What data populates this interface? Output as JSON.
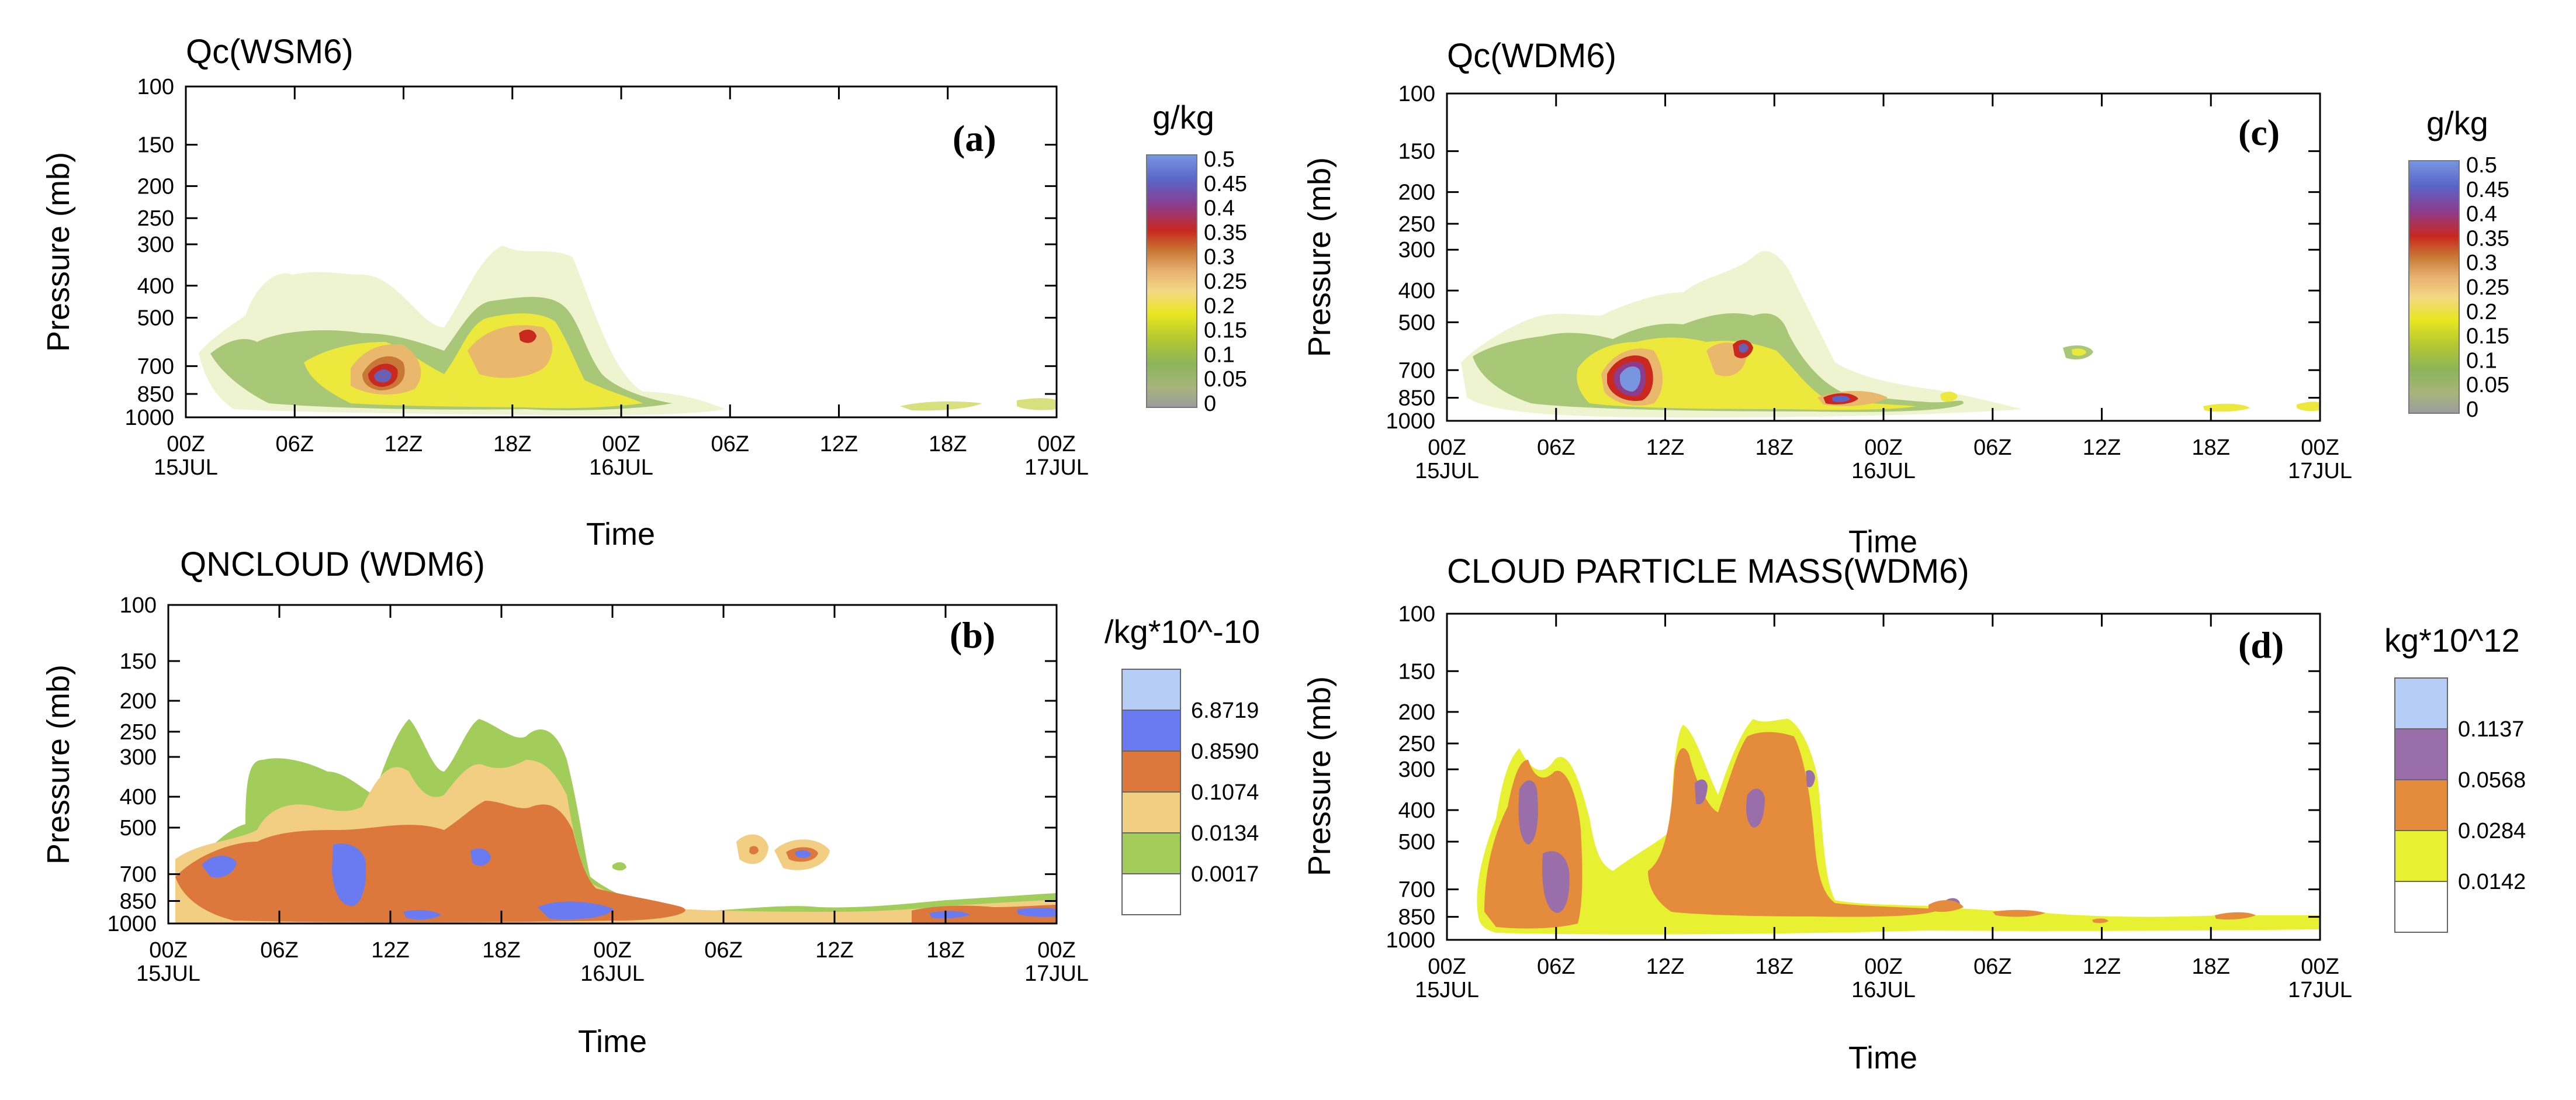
{
  "figure": {
    "description_panels": "Four time-pressure cross sections of cloud microphysics fields",
    "panels": [
      "a",
      "b",
      "c",
      "d"
    ]
  },
  "chart_data": [
    {
      "id": "a",
      "type": "heatmap",
      "title": "Qc(WSM6)",
      "panel_label": "(a)",
      "xlabel": "Time",
      "ylabel": "Pressure (mb)",
      "x_ticks": [
        "00Z",
        "06Z",
        "12Z",
        "18Z",
        "00Z",
        "06Z",
        "12Z",
        "18Z",
        "00Z"
      ],
      "x_dates": [
        "15JUL",
        "16JUL",
        "17JUL"
      ],
      "x_hours_range": [
        0,
        48
      ],
      "y_ticks": [
        100,
        150,
        200,
        250,
        300,
        400,
        500,
        700,
        850,
        1000
      ],
      "y_range": [
        1000,
        100
      ],
      "y_scale": "log",
      "colorbar": {
        "unit": "g/kg",
        "type": "continuous",
        "labels": [
          "0.5",
          "0.45",
          "0.4",
          "0.35",
          "0.3",
          "0.25",
          "0.2",
          "0.15",
          "0.1",
          "0.05",
          "0"
        ],
        "levels": [
          0,
          0.05,
          0.1,
          0.15,
          0.2,
          0.25,
          0.3,
          0.35,
          0.4,
          0.45,
          0.5
        ],
        "colors": [
          "#9c9c9c",
          "#a8b47a",
          "#8cb45a",
          "#b4c830",
          "#e8e620",
          "#f4d884",
          "#e8b070",
          "#c87834",
          "#c8281e",
          "#8c3c8c",
          "#5a64c8",
          "#7896e0"
        ]
      },
      "features": [
        {
          "t": 2,
          "p": 680,
          "v": 0.06
        },
        {
          "t": 4,
          "p": 620,
          "v": 0.08
        },
        {
          "t": 8,
          "p": 640,
          "v": 0.15
        },
        {
          "t": 10.5,
          "p": 760,
          "v": 0.45
        },
        {
          "t": 12,
          "p": 820,
          "v": 0.25
        },
        {
          "t": 15.5,
          "p": 620,
          "v": 0.3
        },
        {
          "t": 18.5,
          "p": 560,
          "v": 0.3
        },
        {
          "t": 21,
          "p": 800,
          "v": 0.1
        },
        {
          "t": 42,
          "p": 900,
          "v": 0.1
        },
        {
          "t": 47.5,
          "p": 880,
          "v": 0.1
        }
      ]
    },
    {
      "id": "b",
      "type": "heatmap",
      "title": "QNCLOUD (WDM6)",
      "panel_label": "(b)",
      "xlabel": "Time",
      "ylabel": "Pressure (mb)",
      "x_ticks": [
        "00Z",
        "06Z",
        "12Z",
        "18Z",
        "00Z",
        "06Z",
        "12Z",
        "18Z",
        "00Z"
      ],
      "x_dates": [
        "15JUL",
        "16JUL",
        "17JUL"
      ],
      "x_hours_range": [
        0,
        48
      ],
      "y_ticks": [
        100,
        150,
        200,
        250,
        300,
        400,
        500,
        700,
        850,
        1000
      ],
      "y_range": [
        1000,
        100
      ],
      "y_scale": "log",
      "colorbar": {
        "unit": "/kg*10^-10",
        "type": "discrete",
        "labels": [
          "6.8719",
          "0.8590",
          "0.1074",
          "0.0134",
          "0.0017"
        ],
        "colors": [
          "#ffffff",
          "#a2cd5a",
          "#f2ce82",
          "#dd783c",
          "#6a7af0",
          "#b6cef6"
        ]
      },
      "features": [
        {
          "t": 3,
          "p": 650,
          "v": 6.87
        },
        {
          "t": 10,
          "p": 700,
          "v": 6.87
        },
        {
          "t": 17,
          "p": 650,
          "v": 6.87
        },
        {
          "t": 21,
          "p": 850,
          "v": 6.87
        },
        {
          "t": 32,
          "p": 560,
          "v": 0.11
        },
        {
          "t": 35,
          "p": 580,
          "v": 6.87
        },
        {
          "t": 42,
          "p": 900,
          "v": 0.86
        },
        {
          "t": 47,
          "p": 880,
          "v": 6.87
        }
      ]
    },
    {
      "id": "c",
      "type": "heatmap",
      "title": "Qc(WDM6)",
      "panel_label": "(c)",
      "xlabel": "Time",
      "ylabel": "Pressure (mb)",
      "x_ticks": [
        "00Z",
        "06Z",
        "12Z",
        "18Z",
        "00Z",
        "06Z",
        "12Z",
        "18Z",
        "00Z"
      ],
      "x_dates": [
        "15JUL",
        "16JUL",
        "17JUL"
      ],
      "x_hours_range": [
        0,
        48
      ],
      "y_ticks": [
        100,
        150,
        200,
        250,
        300,
        400,
        500,
        700,
        850,
        1000
      ],
      "y_range": [
        1000,
        100
      ],
      "y_scale": "log",
      "colorbar": {
        "unit": "g/kg",
        "type": "continuous",
        "labels": [
          "0.5",
          "0.45",
          "0.4",
          "0.35",
          "0.3",
          "0.25",
          "0.2",
          "0.15",
          "0.1",
          "0.05",
          "0"
        ],
        "levels": [
          0,
          0.05,
          0.1,
          0.15,
          0.2,
          0.25,
          0.3,
          0.35,
          0.4,
          0.45,
          0.5
        ],
        "colors": [
          "#9c9c9c",
          "#a8b47a",
          "#8cb45a",
          "#b4c830",
          "#e8e620",
          "#f4d884",
          "#e8b070",
          "#c87834",
          "#c8281e",
          "#8c3c8c",
          "#5a64c8",
          "#7896e0"
        ]
      },
      "features": [
        {
          "t": 10,
          "p": 720,
          "v": 0.5
        },
        {
          "t": 16.5,
          "p": 640,
          "v": 0.4
        },
        {
          "t": 22,
          "p": 850,
          "v": 0.45
        },
        {
          "t": 28,
          "p": 840,
          "v": 0.15
        },
        {
          "t": 34,
          "p": 640,
          "v": 0.1
        },
        {
          "t": 42,
          "p": 890,
          "v": 0.15
        },
        {
          "t": 47.5,
          "p": 880,
          "v": 0.1
        }
      ]
    },
    {
      "id": "d",
      "type": "heatmap",
      "title": "CLOUD PARTICLE MASS(WDM6)",
      "panel_label": "(d)",
      "xlabel": "Time",
      "ylabel": "Pressure (mb)",
      "x_ticks": [
        "00Z",
        "06Z",
        "12Z",
        "18Z",
        "00Z",
        "06Z",
        "12Z",
        "18Z",
        "00Z"
      ],
      "x_dates": [
        "15JUL",
        "16JUL",
        "17JUL"
      ],
      "x_hours_range": [
        0,
        48
      ],
      "y_ticks": [
        100,
        150,
        200,
        250,
        300,
        400,
        500,
        700,
        850,
        1000
      ],
      "y_range": [
        1000,
        100
      ],
      "y_scale": "log",
      "colorbar": {
        "unit": "kg*10^12",
        "type": "discrete",
        "labels": [
          "0.1137",
          "0.0568",
          "0.0284",
          "0.0142"
        ],
        "colors": [
          "#ffffff",
          "#e8f032",
          "#e48c3c",
          "#9a6ea8",
          "#b6cef6"
        ]
      },
      "features": [
        {
          "t": 5,
          "p": 600,
          "v": 0.0568
        },
        {
          "t": 14,
          "p": 520,
          "v": 0.0284
        },
        {
          "t": 18,
          "p": 480,
          "v": 0.0568
        },
        {
          "t": 28,
          "p": 840,
          "v": 0.0284
        },
        {
          "t": 42,
          "p": 880,
          "v": 0.0284
        }
      ]
    }
  ]
}
